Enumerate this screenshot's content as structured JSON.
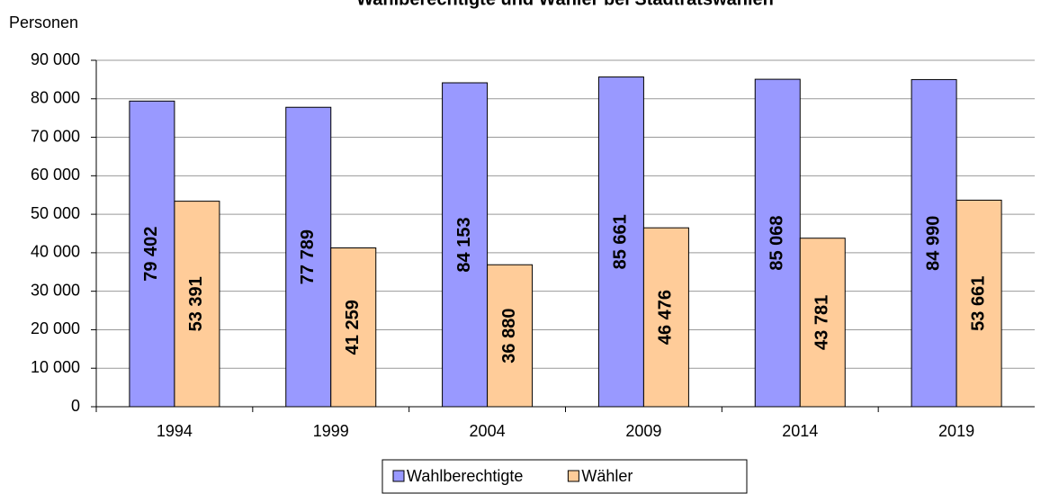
{
  "chart_data": {
    "type": "bar",
    "title": "Wahlberechtigte und Wähler bei Stadtratswahlen",
    "y_label": "Personen",
    "categories": [
      "1994",
      "1999",
      "2004",
      "2009",
      "2014",
      "2019"
    ],
    "series": [
      {
        "name": "Wahlberechtigte",
        "color": "#9999ff",
        "values": [
          79402,
          77789,
          84153,
          85661,
          85068,
          84990
        ],
        "value_labels": [
          "79 402",
          "77 789",
          "84 153",
          "85 661",
          "85 068",
          "84 990"
        ]
      },
      {
        "name": "Wähler",
        "color": "#ffcc99",
        "values": [
          53391,
          41259,
          36880,
          46476,
          43781,
          53661
        ],
        "value_labels": [
          "53 391",
          "41 259",
          "36 880",
          "46 476",
          "43 781",
          "53 661"
        ]
      }
    ],
    "ylim": [
      0,
      90000
    ],
    "yticks": [
      0,
      {
        "value": 10000,
        "label": "10 000"
      },
      {
        "value": 20000,
        "label": "20 000"
      },
      {
        "value": 30000,
        "label": "30 000"
      },
      {
        "value": 40000,
        "label": "40 000"
      },
      {
        "value": 50000,
        "label": "50 000"
      },
      {
        "value": 60000,
        "label": "60 000"
      },
      {
        "value": 70000,
        "label": "70 000"
      },
      {
        "value": 80000,
        "label": "80 000"
      },
      {
        "value": 90000,
        "label": "90 000"
      }
    ],
    "grid": true,
    "legend": "bottom"
  }
}
